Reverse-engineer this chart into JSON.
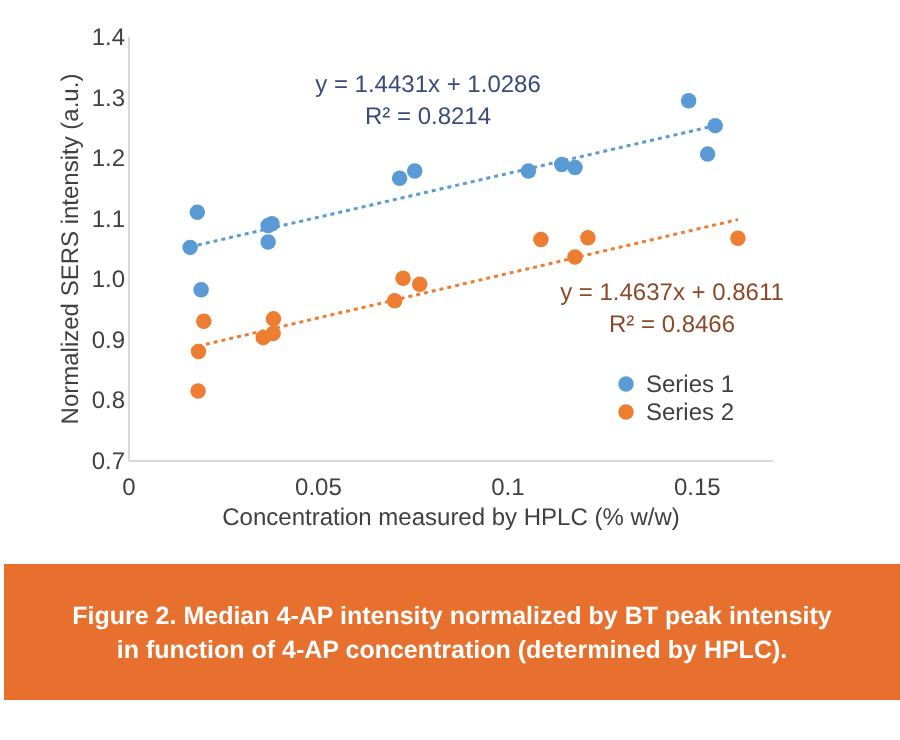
{
  "chart_data": {
    "type": "scatter",
    "xlabel": "Concentration measured by HPLC (% w/w)",
    "ylabel": "Normalized SERS intensity (a.u.)",
    "xlim": [
      0,
      0.17
    ],
    "xticks": [
      0,
      0.05,
      0.1,
      0.15
    ],
    "ylim": [
      0.7,
      1.4
    ],
    "yticks": [
      0.7,
      0.8,
      0.9,
      {
        "value": 1.0,
        "label": "1.0"
      },
      1.1,
      1.2,
      1.3,
      1.4
    ],
    "grid": false,
    "legend": "bottom right",
    "marker": "circle",
    "series": [
      {
        "name": "Series 1",
        "color": "#5b9bd5",
        "x": [
          0.0164,
          0.0183,
          0.0193,
          0.037,
          0.037,
          0.038,
          0.0717,
          0.0757,
          0.1057,
          0.1145,
          0.118,
          0.148,
          0.155,
          0.153
        ],
        "values": [
          1.051,
          1.109,
          0.981,
          1.06,
          1.087,
          1.09,
          1.165,
          1.177,
          1.177,
          1.188,
          1.183,
          1.293,
          1.252,
          1.205
        ]
      },
      {
        "name": "Series 2",
        "color": "#ed7d31",
        "x": [
          0.0185,
          0.0186,
          0.02,
          0.0357,
          0.0383,
          0.0384,
          0.0704,
          0.0726,
          0.077,
          0.109,
          0.1214,
          0.118,
          0.161
        ],
        "values": [
          0.814,
          0.879,
          0.929,
          0.902,
          0.909,
          0.933,
          0.963,
          1.0,
          0.99,
          1.064,
          1.067,
          1.035,
          1.066
        ]
      },
      {
        "type": "line",
        "marker": "none",
        "line_style": "dotted",
        "color": "#5b9bd5",
        "x": [
          0.0164,
          0.155
        ],
        "values": [
          1.052,
          1.252
        ]
      },
      {
        "type": "line",
        "marker": "none",
        "line_style": "dotted",
        "color": "#ed7d31",
        "x": [
          0.0185,
          0.161
        ],
        "values": [
          0.888,
          1.097
        ]
      }
    ],
    "annotations": [
      "y = 1.4431x + 1.0286",
      "R² = 0.8214",
      "y = 1.4637x + 0.8611",
      "R² = 0.8466",
      "Figure 2. Median 4-AP intensity normalized by BT peak intensity\nin function of 4-AP concentration (determined by HPLC)."
    ]
  }
}
